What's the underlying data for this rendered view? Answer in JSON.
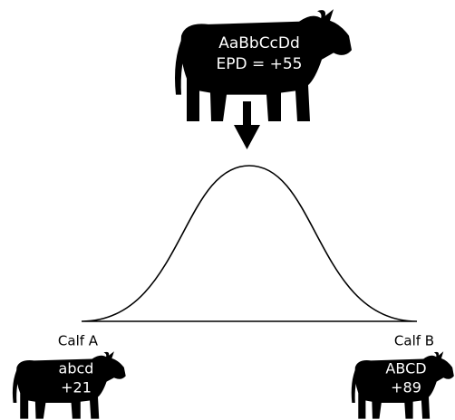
{
  "sire": {
    "genotype": "AaBbCcDd",
    "epd": "EPD = +55"
  },
  "calves": [
    {
      "label": "Calf A",
      "genotype": "abcd",
      "epd": "+21"
    },
    {
      "label": "Calf B",
      "genotype": "ABCD",
      "epd": "+89"
    }
  ]
}
